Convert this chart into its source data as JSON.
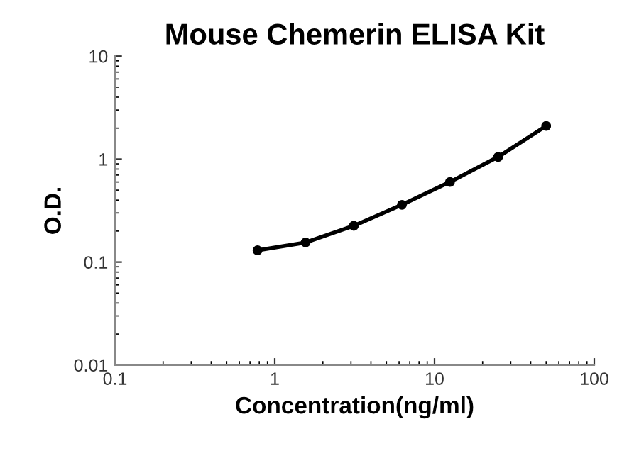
{
  "chart_data": {
    "type": "line",
    "title": "Mouse Chemerin ELISA Kit",
    "xlabel": "Concentration(ng/ml)",
    "ylabel": "O.D.",
    "x": [
      0.78,
      1.56,
      3.125,
      6.25,
      12.5,
      25,
      50
    ],
    "series": [
      {
        "color": "#000000",
        "values": [
          0.13,
          0.155,
          0.225,
          0.36,
          0.6,
          1.05,
          2.1
        ]
      }
    ],
    "log": "xy",
    "xlim": [
      0.1,
      100
    ],
    "ylim": [
      0.01,
      10
    ],
    "xticks": [
      0.1,
      1,
      10,
      100
    ],
    "yticks": [
      0.01,
      0.1,
      1,
      10
    ],
    "grid": false,
    "legend": false,
    "marker": "circle",
    "line_style": "solid"
  }
}
